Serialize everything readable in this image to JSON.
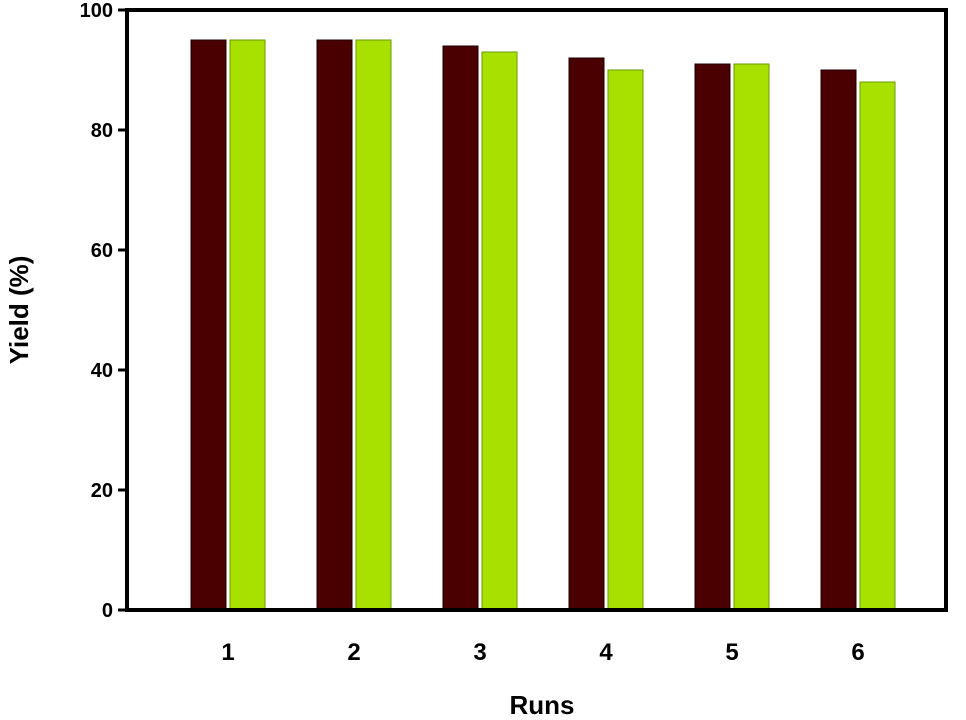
{
  "chart_data": {
    "type": "bar",
    "title": "",
    "xlabel": "Runs",
    "ylabel": "Yield (%)",
    "categories": [
      "1",
      "2",
      "3",
      "4",
      "5",
      "6"
    ],
    "series": [
      {
        "values": [
          95,
          95,
          94,
          92,
          91,
          90
        ],
        "color": "#4a0000"
      },
      {
        "values": [
          95,
          95,
          93,
          90,
          91,
          88
        ],
        "color": "#a8e000"
      }
    ],
    "ylim": [
      0,
      100
    ],
    "yticks": [
      0,
      20,
      40,
      60,
      80,
      100
    ],
    "grid": false,
    "legend": "none"
  }
}
